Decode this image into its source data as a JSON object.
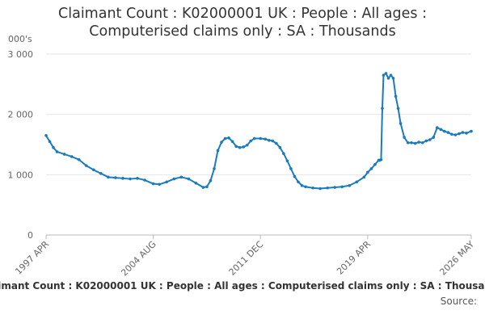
{
  "chart_data": {
    "type": "line",
    "title": "Claimant Count : K02000001 UK : People : All ages : Computerised claims only : SA : Thousands",
    "y_unit_label": "000's",
    "source_label": "Source:",
    "x": [
      "1997-04",
      "1997-07",
      "1997-10",
      "1998-01",
      "1998-07",
      "1999-01",
      "1999-07",
      "2000-01",
      "2000-07",
      "2001-01",
      "2001-07",
      "2002-01",
      "2002-07",
      "2003-01",
      "2003-07",
      "2004-01",
      "2004-08",
      "2005-01",
      "2005-07",
      "2006-01",
      "2006-07",
      "2007-01",
      "2007-07",
      "2008-01",
      "2008-04",
      "2008-07",
      "2008-10",
      "2009-01",
      "2009-04",
      "2009-07",
      "2009-10",
      "2010-01",
      "2010-04",
      "2010-07",
      "2010-10",
      "2011-01",
      "2011-04",
      "2011-07",
      "2011-12",
      "2012-04",
      "2012-07",
      "2012-10",
      "2013-01",
      "2013-04",
      "2013-07",
      "2013-10",
      "2014-01",
      "2014-04",
      "2014-07",
      "2014-10",
      "2015-01",
      "2015-07",
      "2016-01",
      "2016-07",
      "2017-01",
      "2017-07",
      "2018-01",
      "2018-07",
      "2019-01",
      "2019-04",
      "2019-07",
      "2019-10",
      "2020-01",
      "2020-02",
      "2020-03",
      "2020-04",
      "2020-05",
      "2020-07",
      "2020-09",
      "2020-11",
      "2021-01",
      "2021-03",
      "2021-05",
      "2021-07",
      "2021-10",
      "2022-01",
      "2022-04",
      "2022-07",
      "2022-10",
      "2023-01",
      "2023-04",
      "2023-07",
      "2023-10",
      "2024-01",
      "2024-04",
      "2024-07",
      "2024-10",
      "2025-01",
      "2025-04",
      "2025-07",
      "2025-10",
      "2026-01",
      "2026-05"
    ],
    "series": [
      {
        "name": "Claimant Count",
        "color": "#1a7cbd",
        "values": [
          1650,
          1550,
          1450,
          1380,
          1340,
          1300,
          1250,
          1150,
          1080,
          1020,
          960,
          950,
          940,
          930,
          940,
          910,
          850,
          840,
          880,
          930,
          960,
          930,
          860,
          790,
          800,
          900,
          1100,
          1400,
          1540,
          1600,
          1610,
          1550,
          1470,
          1450,
          1460,
          1490,
          1560,
          1600,
          1600,
          1590,
          1570,
          1560,
          1520,
          1450,
          1350,
          1230,
          1100,
          970,
          880,
          820,
          800,
          780,
          770,
          780,
          790,
          800,
          820,
          880,
          960,
          1040,
          1100,
          1170,
          1240,
          1240,
          1250,
          2100,
          2650,
          2680,
          2600,
          2650,
          2600,
          2300,
          2100,
          1850,
          1620,
          1530,
          1530,
          1520,
          1540,
          1530,
          1560,
          1580,
          1620,
          1780,
          1750,
          1720,
          1700,
          1670,
          1660,
          1680,
          1700,
          1690,
          1720
        ]
      }
    ],
    "xlim": [
      "1997-04",
      "2026-05"
    ],
    "xticks": [
      {
        "value": "1997-04",
        "label": "1997 APR"
      },
      {
        "value": "2004-08",
        "label": "2004 AUG"
      },
      {
        "value": "2011-12",
        "label": "2011 DEC"
      },
      {
        "value": "2019-04",
        "label": "2019 APR"
      },
      {
        "value": "2026-05",
        "label": "2026 MAY"
      }
    ],
    "ylim": [
      0,
      3000
    ],
    "yticks": [
      0,
      {
        "value": 1000,
        "label": "1 000"
      },
      {
        "value": 2000,
        "label": "2 000"
      },
      {
        "value": 3000,
        "label": "3 000"
      }
    ],
    "grid": true
  }
}
